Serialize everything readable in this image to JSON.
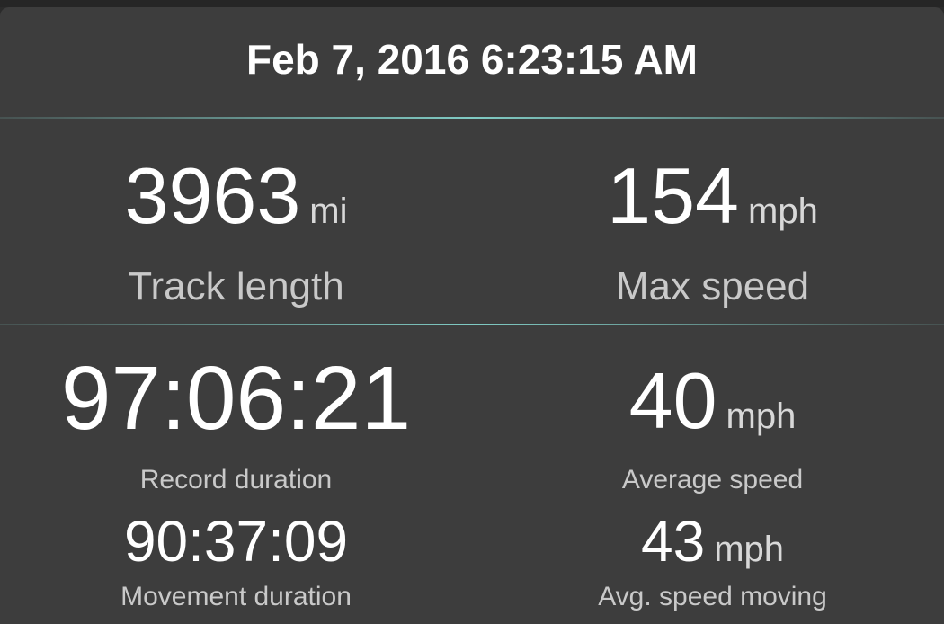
{
  "header": {
    "title": "Feb 7, 2016 6:23:15 AM"
  },
  "stats": {
    "track_length": {
      "value": "3963",
      "unit": "mi",
      "label": "Track length"
    },
    "max_speed": {
      "value": "154",
      "unit": "mph",
      "label": "Max speed"
    },
    "record_duration": {
      "value": "97:06:21",
      "label": "Record duration"
    },
    "average_speed": {
      "value": "40",
      "unit": "mph",
      "label": "Average speed"
    },
    "movement_duration": {
      "value": "90:37:09",
      "label": "Movement duration"
    },
    "avg_speed_moving": {
      "value": "43",
      "unit": "mph",
      "label": "Avg. speed moving"
    }
  },
  "colors": {
    "background": "#3d3d3d",
    "divider_accent": "#80cbc4",
    "text_primary": "#ffffff",
    "text_secondary": "#c9c9c9"
  }
}
